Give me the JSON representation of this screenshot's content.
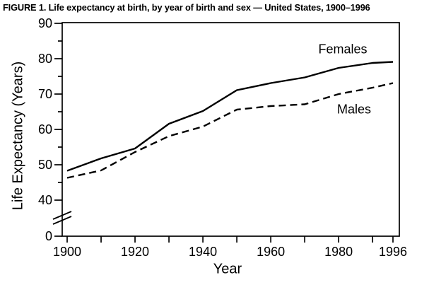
{
  "figure_title": "FIGURE 1. Life expectancy at birth, by year of birth and sex — United States, 1900–1996",
  "chart_data": {
    "type": "line",
    "title": "FIGURE 1. Life expectancy at birth, by year of birth and sex — United States, 1900–1996",
    "xlabel": "Year",
    "ylabel": "Life Expectancy (Years)",
    "x": [
      1900,
      1910,
      1920,
      1930,
      1940,
      1950,
      1960,
      1970,
      1980,
      1990,
      1996
    ],
    "series": [
      {
        "name": "Females",
        "line_style": "solid",
        "values": [
          48.3,
          51.8,
          54.6,
          61.6,
          65.2,
          71.1,
          73.1,
          74.7,
          77.4,
          78.8,
          79.1
        ]
      },
      {
        "name": "Males",
        "line_style": "dashed",
        "values": [
          46.3,
          48.4,
          53.6,
          58.1,
          60.8,
          65.6,
          66.6,
          67.1,
          70.0,
          71.8,
          73.1
        ]
      }
    ],
    "x_major_tick_years": [
      1900,
      1920,
      1940,
      1960,
      1980,
      1996
    ],
    "x_major_tick_labels": [
      "1900",
      "1920",
      "1940",
      "1960",
      "1980",
      "1996"
    ],
    "x_all_tick_years": [
      1900,
      1910,
      1920,
      1930,
      1940,
      1950,
      1960,
      1970,
      1980,
      1990,
      1996
    ],
    "y_major_ticks": [
      90,
      80,
      70,
      60,
      50,
      40
    ],
    "y_minor_ticks": [
      85,
      75,
      65,
      55,
      45
    ],
    "y_break_label": "0",
    "y_axis_break": true,
    "xlim": [
      1900,
      1998
    ],
    "ylim_displayed": [
      40,
      90
    ],
    "grid": "off",
    "legend": "inline-labels",
    "line_color": "#000000",
    "background_color": "#ffffff"
  }
}
